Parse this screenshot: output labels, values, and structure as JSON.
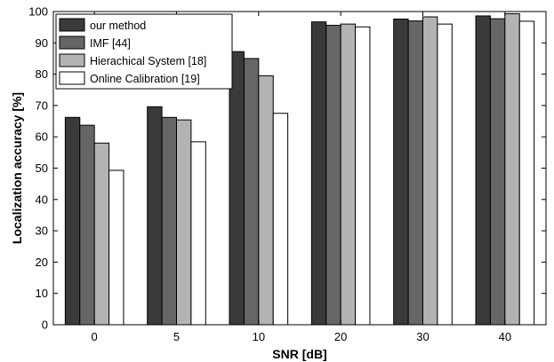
{
  "chart_data": {
    "type": "bar",
    "title": "",
    "xlabel": "SNR [dB]",
    "ylabel": "Localization accuracy [%]",
    "ylim": [
      0,
      100
    ],
    "yticks": [
      0,
      10,
      20,
      30,
      40,
      50,
      60,
      70,
      80,
      90,
      100
    ],
    "categories": [
      "0",
      "5",
      "10",
      "20",
      "30",
      "40"
    ],
    "grid": false,
    "legend_position": "top-left",
    "series": [
      {
        "name": "our method",
        "color": "#3a3a3a",
        "values": [
          66.2,
          69.6,
          87.2,
          96.7,
          97.6,
          98.6
        ]
      },
      {
        "name": "IMF [44]",
        "color": "#666666",
        "values": [
          63.7,
          66.2,
          85.0,
          95.6,
          97.0,
          97.7
        ]
      },
      {
        "name": "Hierachical System [18]",
        "color": "#b3b3b3",
        "values": [
          58.0,
          65.4,
          79.5,
          96.0,
          98.3,
          99.3
        ]
      },
      {
        "name": "Online Calibration [19]",
        "color": "#ffffff",
        "values": [
          49.3,
          58.4,
          67.5,
          95.1,
          96.0,
          96.9
        ]
      }
    ]
  }
}
